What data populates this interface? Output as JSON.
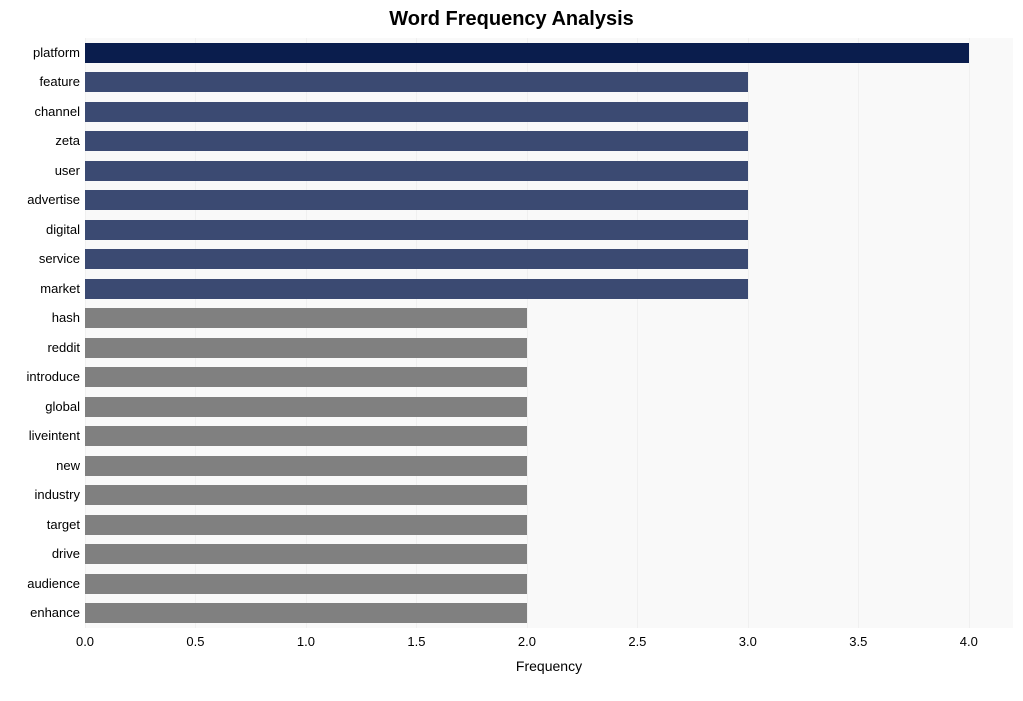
{
  "chart": {
    "type": "bar-horizontal",
    "title": "Word Frequency Analysis",
    "title_fontsize": 20,
    "title_fontweight": "bold",
    "xlabel": "Frequency",
    "label_fontsize": 14,
    "tick_fontsize": 13,
    "xlim": [
      0,
      4.2
    ],
    "xtick_step": 0.5,
    "xticks": [
      "0.0",
      "0.5",
      "1.0",
      "1.5",
      "2.0",
      "2.5",
      "3.0",
      "3.5",
      "4.0"
    ],
    "background_color": "#ffffff",
    "grid_color": "#f0f0f0",
    "plot_bg": "#f9f9f9",
    "bar_height_ratio": 0.68,
    "categories": [
      "platform",
      "feature",
      "channel",
      "zeta",
      "user",
      "advertise",
      "digital",
      "service",
      "market",
      "hash",
      "reddit",
      "introduce",
      "global",
      "liveintent",
      "new",
      "industry",
      "target",
      "drive",
      "audience",
      "enhance"
    ],
    "values": [
      4,
      3,
      3,
      3,
      3,
      3,
      3,
      3,
      3,
      2,
      2,
      2,
      2,
      2,
      2,
      2,
      2,
      2,
      2,
      2
    ],
    "bar_colors": [
      "#0a1d4d",
      "#3b4a72",
      "#3b4a72",
      "#3b4a72",
      "#3b4a72",
      "#3b4a72",
      "#3b4a72",
      "#3b4a72",
      "#3b4a72",
      "#808080",
      "#808080",
      "#808080",
      "#808080",
      "#808080",
      "#808080",
      "#808080",
      "#808080",
      "#808080",
      "#808080",
      "#808080"
    ]
  }
}
